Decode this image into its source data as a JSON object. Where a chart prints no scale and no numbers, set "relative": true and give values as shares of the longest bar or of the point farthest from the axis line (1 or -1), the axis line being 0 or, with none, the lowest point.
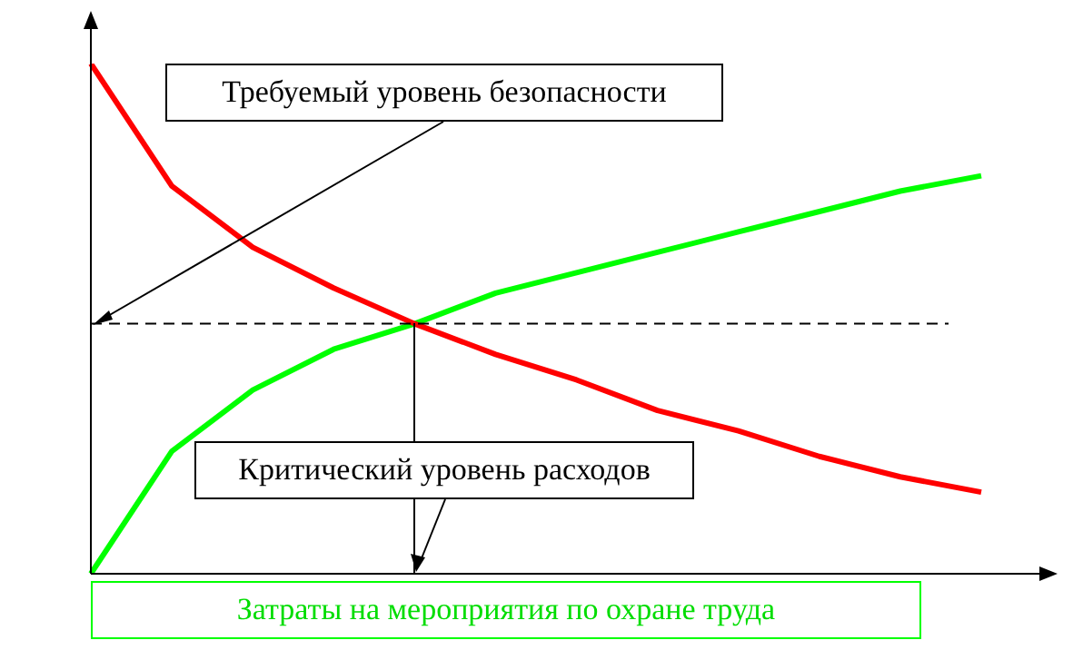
{
  "chart_data": {
    "type": "line",
    "relative": true,
    "xlabel": "Затраты на мероприятия по охране труда",
    "categories": [
      null,
      null,
      null,
      null,
      null,
      null,
      null,
      null,
      null,
      null,
      null,
      null
    ],
    "series": [
      {
        "color": "#ff0000",
        "values": [
          1.0,
          0.76,
          0.64,
          0.56,
          0.49,
          0.43,
          0.38,
          0.32,
          0.28,
          0.23,
          0.19,
          0.16
        ]
      },
      {
        "color": "#00ff00",
        "values": [
          0,
          0.24,
          0.36,
          0.44,
          0.49,
          0.55,
          0.59,
          0.63,
          0.67,
          0.71,
          0.75,
          0.78
        ]
      }
    ],
    "ref_lines": [
      {
        "axis": "y",
        "value": 0.49,
        "label": null,
        "color": "#000000",
        "line_style": "dashed"
      }
    ],
    "annotations": [
      "Требуемый уровень безопасности",
      "Критический уровень расходов"
    ],
    "marker": "none",
    "grid": false,
    "legend": false
  }
}
